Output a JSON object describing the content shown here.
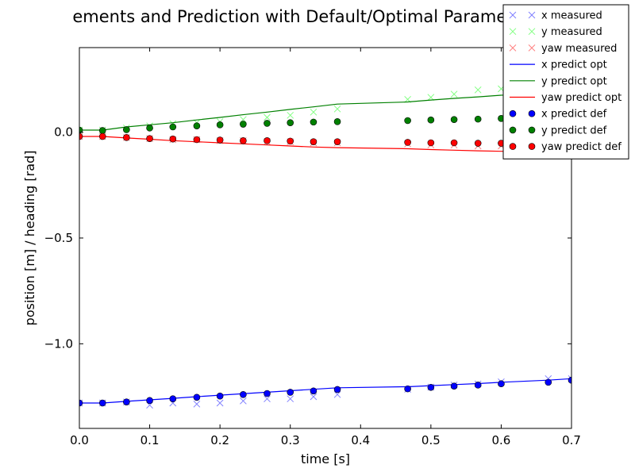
{
  "chart_data": {
    "type": "scatter",
    "title": "ements and Prediction with Default/Optimal Parameter V     a",
    "xlabel": "time [s]",
    "ylabel": "position [m] / heading [rad]",
    "xlim": [
      0.0,
      0.7
    ],
    "ylim": [
      -1.4,
      0.4
    ],
    "xticks": [
      {
        "value": 0.0,
        "label": "0.0"
      },
      {
        "value": 0.1,
        "label": "0.1"
      },
      {
        "value": 0.2,
        "label": "0.2"
      },
      {
        "value": 0.3,
        "label": "0.3"
      },
      {
        "value": 0.4,
        "label": "0.4"
      },
      {
        "value": 0.5,
        "label": "0.5"
      },
      {
        "value": 0.6,
        "label": "0.6"
      },
      {
        "value": 0.7,
        "label": "0.7"
      }
    ],
    "yticks": [
      {
        "value": 0.0,
        "label": "0.0"
      },
      {
        "value": -0.5,
        "label": "−0.5"
      },
      {
        "value": -1.0,
        "label": "−1.0"
      }
    ],
    "grid": false,
    "legend_position": "top-right",
    "series": [
      {
        "name": "x measured",
        "kind": "cross",
        "color": "#8080ff",
        "x": [
          0.0,
          0.033,
          0.067,
          0.1,
          0.133,
          0.167,
          0.2,
          0.233,
          0.267,
          0.3,
          0.333,
          0.367,
          0.467,
          0.5,
          0.533,
          0.567,
          0.6,
          0.667,
          0.7
        ],
        "y": [
          -1.28,
          -1.28,
          -1.275,
          -1.29,
          -1.28,
          -1.285,
          -1.28,
          -1.27,
          -1.26,
          -1.26,
          -1.25,
          -1.24,
          -1.215,
          -1.205,
          -1.195,
          -1.19,
          -1.18,
          -1.165,
          -1.165
        ]
      },
      {
        "name": "y measured",
        "kind": "cross",
        "color": "#80ff80",
        "x": [
          0.0,
          0.033,
          0.067,
          0.1,
          0.133,
          0.167,
          0.2,
          0.233,
          0.267,
          0.3,
          0.333,
          0.367,
          0.467,
          0.5,
          0.533,
          0.567,
          0.6,
          0.667,
          0.7
        ],
        "y": [
          0.01,
          0.01,
          0.02,
          0.03,
          0.04,
          0.045,
          0.05,
          0.06,
          0.07,
          0.08,
          0.095,
          0.11,
          0.155,
          0.165,
          0.18,
          0.2,
          0.205,
          0.22,
          0.225
        ]
      },
      {
        "name": "yaw measured",
        "kind": "cross",
        "color": "#ff8080",
        "x": [
          0.0,
          0.033,
          0.067,
          0.1,
          0.133,
          0.167,
          0.2,
          0.233,
          0.267,
          0.3,
          0.333,
          0.367,
          0.467,
          0.5,
          0.533,
          0.567,
          0.6,
          0.667,
          0.7
        ],
        "y": [
          -0.02,
          -0.02,
          -0.025,
          -0.03,
          -0.035,
          -0.035,
          -0.04,
          -0.04,
          -0.045,
          -0.045,
          -0.05,
          -0.05,
          -0.055,
          -0.06,
          -0.06,
          -0.065,
          -0.065,
          -0.07,
          -0.07
        ]
      },
      {
        "name": "x predict opt",
        "kind": "line",
        "color": "#0000ff",
        "x": [
          0.0,
          0.033,
          0.067,
          0.1,
          0.133,
          0.167,
          0.2,
          0.233,
          0.267,
          0.3,
          0.333,
          0.367,
          0.467,
          0.5,
          0.533,
          0.567,
          0.6,
          0.667,
          0.7
        ],
        "y": [
          -1.28,
          -1.28,
          -1.272,
          -1.265,
          -1.258,
          -1.25,
          -1.243,
          -1.236,
          -1.229,
          -1.222,
          -1.215,
          -1.208,
          -1.203,
          -1.198,
          -1.193,
          -1.188,
          -1.182,
          -1.172,
          -1.165
        ]
      },
      {
        "name": "y predict opt",
        "kind": "line",
        "color": "#008000",
        "x": [
          0.0,
          0.033,
          0.067,
          0.1,
          0.133,
          0.167,
          0.2,
          0.233,
          0.267,
          0.3,
          0.333,
          0.367,
          0.467,
          0.5,
          0.533,
          0.567,
          0.6,
          0.667,
          0.7
        ],
        "y": [
          0.01,
          0.01,
          0.025,
          0.035,
          0.045,
          0.058,
          0.07,
          0.083,
          0.095,
          0.108,
          0.12,
          0.133,
          0.143,
          0.152,
          0.16,
          0.167,
          0.175,
          0.185,
          0.195
        ]
      },
      {
        "name": "yaw predict opt",
        "kind": "line",
        "color": "#ff0000",
        "x": [
          0.0,
          0.033,
          0.067,
          0.1,
          0.133,
          0.167,
          0.2,
          0.233,
          0.267,
          0.3,
          0.333,
          0.367,
          0.467,
          0.5,
          0.533,
          0.567,
          0.6,
          0.667,
          0.7
        ],
        "y": [
          -0.02,
          -0.02,
          -0.027,
          -0.033,
          -0.04,
          -0.045,
          -0.05,
          -0.055,
          -0.06,
          -0.065,
          -0.07,
          -0.073,
          -0.078,
          -0.082,
          -0.085,
          -0.088,
          -0.09,
          -0.095,
          -0.098
        ]
      },
      {
        "name": "x predict def",
        "kind": "dot",
        "color": "#0000ff",
        "x": [
          0.0,
          0.033,
          0.067,
          0.1,
          0.133,
          0.167,
          0.2,
          0.233,
          0.267,
          0.3,
          0.333,
          0.367,
          0.467,
          0.5,
          0.533,
          0.567,
          0.6,
          0.667,
          0.7
        ],
        "y": [
          -1.28,
          -1.28,
          -1.275,
          -1.268,
          -1.26,
          -1.253,
          -1.247,
          -1.24,
          -1.235,
          -1.229,
          -1.223,
          -1.216,
          -1.213,
          -1.206,
          -1.2,
          -1.195,
          -1.189,
          -1.182,
          -1.172
        ]
      },
      {
        "name": "y predict def",
        "kind": "dot",
        "color": "#008000",
        "x": [
          0.0,
          0.033,
          0.067,
          0.1,
          0.133,
          0.167,
          0.2,
          0.233,
          0.267,
          0.3,
          0.333,
          0.367,
          0.467,
          0.5,
          0.533,
          0.567,
          0.6,
          0.667,
          0.7
        ],
        "y": [
          0.01,
          0.008,
          0.012,
          0.02,
          0.025,
          0.03,
          0.035,
          0.038,
          0.042,
          0.045,
          0.048,
          0.05,
          0.055,
          0.058,
          0.06,
          0.062,
          0.065,
          0.068,
          0.07
        ]
      },
      {
        "name": "yaw predict def",
        "kind": "dot",
        "color": "#ff0000",
        "x": [
          0.0,
          0.033,
          0.067,
          0.1,
          0.133,
          0.167,
          0.2,
          0.233,
          0.267,
          0.3,
          0.333,
          0.367,
          0.467,
          0.5,
          0.533,
          0.567,
          0.6,
          0.667,
          0.7
        ],
        "y": [
          -0.02,
          -0.02,
          -0.025,
          -0.03,
          -0.032,
          -0.035,
          -0.037,
          -0.04,
          -0.04,
          -0.042,
          -0.045,
          -0.045,
          -0.048,
          -0.05,
          -0.05,
          -0.052,
          -0.052,
          -0.055,
          -0.055
        ]
      }
    ]
  }
}
